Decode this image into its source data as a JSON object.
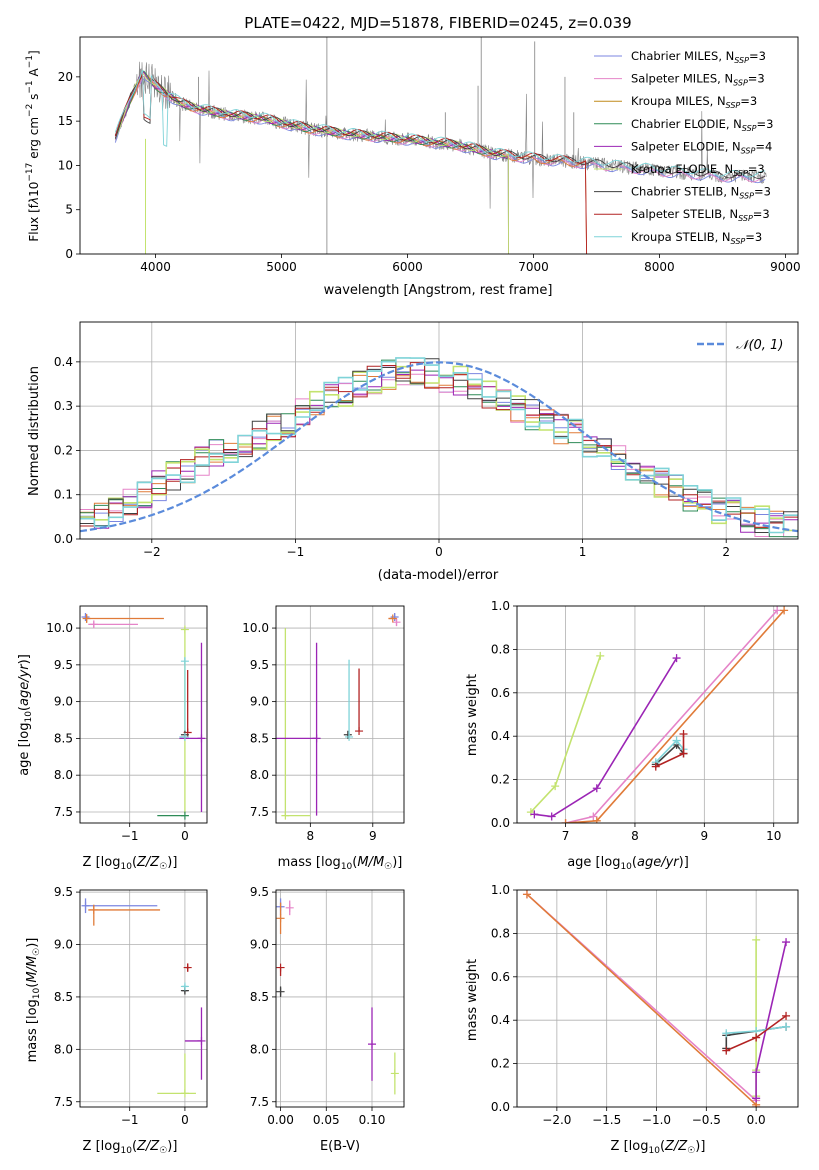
{
  "colors": {
    "Chabrier MILES": "#7b86e0",
    "Salpeter MILES": "#e584c8",
    "Kroupa MILES": "#c08a1a",
    "Chabrier ELODIE": "#2e8b57",
    "Salpeter ELODIE": "#9b25b5",
    "Kroupa ELODIE": "#c3e36f",
    "Chabrier STELIB": "#404040",
    "Salpeter STELIB": "#b22222",
    "Kroupa STELIB": "#7fd3d8",
    "orange": "#e07b39",
    "normal_curve": "#5b8bdb"
  },
  "chart_data": [
    {
      "type": "line",
      "title": "PLATE=0422, MJD=51878, FIBERID=0245, z=0.039",
      "xlabel": "wavelength [Angstrom, rest frame]",
      "ylabel": "Flux [f_λ10⁻¹⁷ erg cm⁻² s⁻¹ A⁻¹]",
      "xlim": [
        3400,
        9100
      ],
      "ylim": [
        0,
        24.5
      ],
      "xticks": [
        4000,
        5000,
        6000,
        7000,
        8000,
        9000
      ],
      "yticks": [
        0,
        5,
        10,
        15,
        20
      ],
      "legend": {
        "placement": "top-right",
        "entries": [
          {
            "name": "Chabrier MILES",
            "suffix": "=3"
          },
          {
            "name": "Salpeter MILES",
            "suffix": "=3"
          },
          {
            "name": "Kroupa MILES",
            "suffix": "=3"
          },
          {
            "name": "Chabrier ELODIE",
            "suffix": "=3"
          },
          {
            "name": "Salpeter ELODIE",
            "suffix": "=4"
          },
          {
            "name": "Kroupa ELODIE",
            "suffix": "=3"
          },
          {
            "name": "Chabrier STELIB",
            "suffix": "=3"
          },
          {
            "name": "Salpeter STELIB",
            "suffix": "=3"
          },
          {
            "name": "Kroupa STELIB",
            "suffix": "=3"
          }
        ]
      },
      "continuum_knots": [
        [
          3680,
          13.2
        ],
        [
          3800,
          17.5
        ],
        [
          3900,
          20.5
        ],
        [
          4000,
          19.0
        ],
        [
          4100,
          18.0
        ],
        [
          4200,
          17.0
        ],
        [
          4400,
          16.2
        ],
        [
          4600,
          15.7
        ],
        [
          4850,
          15.3
        ],
        [
          5000,
          14.8
        ],
        [
          5200,
          14.2
        ],
        [
          5500,
          13.6
        ],
        [
          5800,
          13.2
        ],
        [
          6100,
          12.8
        ],
        [
          6400,
          12.3
        ],
        [
          6700,
          11.3
        ],
        [
          7000,
          10.8
        ],
        [
          7400,
          10.3
        ],
        [
          8000,
          9.4
        ],
        [
          8500,
          8.8
        ],
        [
          8850,
          8.7
        ]
      ]
    },
    {
      "type": "bar",
      "xlabel": "(data-model)/error",
      "ylabel": "Normed distribution",
      "xlim": [
        -2.5,
        2.5
      ],
      "ylim": [
        0,
        0.49
      ],
      "xticks": [
        -2,
        -1,
        0,
        1,
        2
      ],
      "yticks": [
        0.0,
        0.1,
        0.2,
        0.3,
        0.4
      ],
      "grid": true,
      "legend": {
        "placement": "top-right",
        "label": "N(0,1)"
      },
      "bin_centers": [
        -2.45,
        -2.35,
        -2.25,
        -2.15,
        -2.05,
        -1.95,
        -1.85,
        -1.75,
        -1.65,
        -1.55,
        -1.45,
        -1.35,
        -1.25,
        -1.15,
        -1.05,
        -0.95,
        -0.85,
        -0.75,
        -0.65,
        -0.55,
        -0.45,
        -0.35,
        -0.25,
        -0.15,
        -0.05,
        0.05,
        0.15,
        0.25,
        0.35,
        0.45,
        0.55,
        0.65,
        0.75,
        0.85,
        0.95,
        1.05,
        1.15,
        1.25,
        1.35,
        1.45,
        1.55,
        1.65,
        1.75,
        1.85,
        1.95,
        2.05,
        2.15,
        2.25,
        2.35,
        2.45
      ],
      "mean_histogram": [
        0.055,
        0.05,
        0.06,
        0.085,
        0.1,
        0.12,
        0.14,
        0.16,
        0.175,
        0.19,
        0.205,
        0.22,
        0.235,
        0.25,
        0.265,
        0.29,
        0.305,
        0.32,
        0.335,
        0.345,
        0.36,
        0.37,
        0.375,
        0.38,
        0.375,
        0.365,
        0.355,
        0.34,
        0.325,
        0.31,
        0.295,
        0.28,
        0.265,
        0.25,
        0.235,
        0.215,
        0.195,
        0.18,
        0.16,
        0.145,
        0.125,
        0.11,
        0.095,
        0.08,
        0.07,
        0.06,
        0.05,
        0.04,
        0.035,
        0.03
      ]
    },
    {
      "type": "scatter",
      "name": "age-vs-Z",
      "xlabel": "Z [log₁₀(Z/Z☉)]",
      "ylabel": "age  [log₁₀(age/yr)]",
      "xlim": [
        -1.9,
        0.4
      ],
      "ylim": [
        7.35,
        10.3
      ],
      "xticks": [
        -1,
        0
      ],
      "yticks": [
        7.5,
        8.0,
        8.5,
        9.0,
        9.5,
        10.0
      ],
      "points": [
        {
          "series": "Chabrier MILES",
          "x": -1.8,
          "y": 10.15,
          "xerr": [
            0.0,
            0.0
          ],
          "yerr": [
            0.05,
            0.05
          ]
        },
        {
          "series": "Salpeter MILES",
          "x": -1.65,
          "y": 10.05,
          "xerr": [
            0.1,
            0.8
          ],
          "yerr": [
            0.04,
            0.04
          ]
        },
        {
          "series": "orange",
          "x": -1.78,
          "y": 10.13,
          "xerr": [
            0.0,
            1.4
          ],
          "yerr": [
            0.06,
            0.06
          ]
        },
        {
          "series": "Kroupa ELODIE",
          "x": 0.0,
          "y": 9.98,
          "xerr": [
            0.0,
            0.0
          ],
          "yerr": [
            2.5,
            0.04
          ]
        },
        {
          "series": "Kroupa STELIB",
          "x": 0.0,
          "y": 9.55,
          "xerr": [
            0.0,
            0.0
          ],
          "yerr": [
            1.0,
            0.05
          ]
        },
        {
          "series": "Salpeter ELODIE",
          "x": 0.3,
          "y": 8.5,
          "xerr": [
            0.4,
            0.0
          ],
          "yerr": [
            1.0,
            1.3
          ]
        },
        {
          "series": "Salpeter STELIB",
          "x": 0.05,
          "y": 8.58,
          "xerr": [
            0.0,
            0.0
          ],
          "yerr": [
            0.0,
            0.85
          ]
        },
        {
          "series": "Chabrier STELIB",
          "x": 0.0,
          "y": 8.55,
          "xerr": [
            0.0,
            0.0
          ],
          "yerr": [
            0.0,
            0.0
          ]
        },
        {
          "series": "Kroupa STELIB",
          "x": 0.0,
          "y": 8.52,
          "xerr": [
            0.1,
            0.0
          ],
          "yerr": [
            0.0,
            0.0
          ]
        },
        {
          "series": "Chabrier ELODIE",
          "x": 0.0,
          "y": 7.45,
          "xerr": [
            0.5,
            0.0
          ],
          "yerr": [
            0.0,
            0.0
          ]
        }
      ]
    },
    {
      "type": "scatter",
      "name": "age-vs-mass",
      "xlabel": "mass [log₁₀(M/M☉)]",
      "ylabel": "",
      "xlim": [
        7.45,
        9.5
      ],
      "ylim": [
        7.35,
        10.3
      ],
      "xticks": [
        8,
        9
      ],
      "yticks": [
        7.5,
        8.0,
        8.5,
        9.0,
        9.5,
        10.0
      ],
      "points": [
        {
          "series": "Chabrier MILES",
          "x": 9.35,
          "y": 10.15,
          "xerr": [
            0.0,
            0.0
          ],
          "yerr": [
            0.05,
            0.05
          ]
        },
        {
          "series": "Salpeter MILES",
          "x": 9.38,
          "y": 10.08,
          "xerr": [
            0.0,
            0.0
          ],
          "yerr": [
            0.05,
            0.05
          ]
        },
        {
          "series": "orange",
          "x": 9.32,
          "y": 10.13,
          "xerr": [
            0.07,
            0.0
          ],
          "yerr": [
            0.0,
            0.0
          ]
        },
        {
          "series": "Kroupa ELODIE",
          "x": 7.6,
          "y": 7.45,
          "xerr": [
            0.0,
            0.4
          ],
          "yerr": [
            0.0,
            2.55
          ]
        },
        {
          "series": "Salpeter ELODIE",
          "x": 8.1,
          "y": 8.5,
          "xerr": [
            0.7,
            0.0
          ],
          "yerr": [
            1.05,
            1.3
          ]
        },
        {
          "series": "Chabrier STELIB",
          "x": 8.6,
          "y": 8.55,
          "xerr": [
            0.0,
            0.0
          ],
          "yerr": [
            0.0,
            0.0
          ]
        },
        {
          "series": "Kroupa STELIB",
          "x": 8.62,
          "y": 8.52,
          "xerr": [
            0.0,
            0.0
          ],
          "yerr": [
            0.0,
            1.05
          ]
        },
        {
          "series": "Salpeter STELIB",
          "x": 8.78,
          "y": 8.6,
          "xerr": [
            0.0,
            0.0
          ],
          "yerr": [
            0.0,
            0.85
          ]
        }
      ]
    },
    {
      "type": "line",
      "name": "mass-weight-vs-age",
      "xlabel": "age  [log₁₀(age/yr)]",
      "ylabel": "mass weight",
      "xlim": [
        6.3,
        10.35
      ],
      "ylim": [
        0,
        1.0
      ],
      "xticks": [
        7,
        8,
        9,
        10
      ],
      "yticks": [
        0.0,
        0.2,
        0.4,
        0.6,
        0.8,
        1.0
      ],
      "series": [
        {
          "name": "Kroupa ELODIE",
          "x": [
            6.5,
            6.85,
            7.5
          ],
          "y": [
            0.05,
            0.17,
            0.77
          ]
        },
        {
          "name": "Salpeter ELODIE",
          "x": [
            6.55,
            6.8,
            7.45,
            8.6
          ],
          "y": [
            0.04,
            0.03,
            0.16,
            0.76
          ]
        },
        {
          "name": "Salpeter MILES",
          "x": [
            7.0,
            7.4,
            10.05
          ],
          "y": [
            0.0,
            0.03,
            0.98
          ]
        },
        {
          "name": "orange",
          "x": [
            7.0,
            7.45,
            10.15
          ],
          "y": [
            0.0,
            0.01,
            0.98
          ]
        },
        {
          "name": "Chabrier STELIB",
          "x": [
            8.3,
            8.6,
            8.7
          ],
          "y": [
            0.27,
            0.36,
            0.32
          ]
        },
        {
          "name": "Kroupa STELIB",
          "x": [
            8.3,
            8.6,
            8.7
          ],
          "y": [
            0.28,
            0.38,
            0.34
          ]
        },
        {
          "name": "Salpeter STELIB",
          "x": [
            8.3,
            8.7,
            8.7
          ],
          "y": [
            0.26,
            0.32,
            0.41
          ]
        }
      ]
    },
    {
      "type": "scatter",
      "name": "mass-vs-Z",
      "xlabel": "Z [log₁₀(Z/Z☉)]",
      "ylabel": "mass [log₁₀(M/M☉)]",
      "xlim": [
        -1.9,
        0.4
      ],
      "ylim": [
        7.45,
        9.52
      ],
      "xticks": [
        -1,
        0
      ],
      "yticks": [
        7.5,
        8.0,
        8.5,
        9.0,
        9.5
      ],
      "points": [
        {
          "series": "Chabrier MILES",
          "x": -1.8,
          "y": 9.37,
          "xerr": [
            0.0,
            1.3
          ],
          "yerr": [
            0.07,
            0.07
          ]
        },
        {
          "series": "orange",
          "x": -1.65,
          "y": 9.33,
          "xerr": [
            0.1,
            1.2
          ],
          "yerr": [
            0.15,
            0.05
          ]
        },
        {
          "series": "Salpeter STELIB",
          "x": 0.05,
          "y": 8.78,
          "xerr": [
            0.03,
            0.03
          ],
          "yerr": [
            0.04,
            0.04
          ]
        },
        {
          "series": "Chabrier STELIB",
          "x": 0.0,
          "y": 8.56,
          "xerr": [
            0.05,
            0.05
          ],
          "yerr": [
            0.03,
            0.03
          ]
        },
        {
          "series": "Kroupa STELIB",
          "x": 0.0,
          "y": 8.6,
          "xerr": [
            0.05,
            0.05
          ],
          "yerr": [
            0.02,
            0.02
          ]
        },
        {
          "series": "Salpeter ELODIE",
          "x": 0.3,
          "y": 8.08,
          "xerr": [
            0.3,
            0.0
          ],
          "yerr": [
            0.37,
            0.32
          ]
        },
        {
          "series": "Kroupa ELODIE",
          "x": 0.0,
          "y": 7.58,
          "xerr": [
            0.5,
            0.2
          ],
          "yerr": [
            0.0,
            0.38
          ]
        }
      ]
    },
    {
      "type": "scatter",
      "name": "mass-vs-EBV",
      "xlabel": "E(B-V)",
      "ylabel": "",
      "xlim": [
        -0.005,
        0.135
      ],
      "ylim": [
        7.45,
        9.52
      ],
      "xticks": [
        0.0,
        0.05,
        0.1
      ],
      "xtick_labels": [
        "0.00",
        "0.05",
        "0.10"
      ],
      "yticks": [
        7.5,
        8.0,
        8.5,
        9.0,
        9.5
      ],
      "points": [
        {
          "series": "Chabrier MILES",
          "x": 0.0,
          "y": 9.36,
          "yerr": [
            0.08,
            0.08
          ]
        },
        {
          "series": "orange",
          "x": 0.0,
          "y": 9.25,
          "yerr": [
            0.15,
            0.15
          ]
        },
        {
          "series": "Salpeter MILES",
          "x": 0.01,
          "y": 9.35,
          "yerr": [
            0.07,
            0.07
          ]
        },
        {
          "series": "Salpeter STELIB",
          "x": 0.0,
          "y": 8.78,
          "yerr": [
            0.08,
            0.0
          ]
        },
        {
          "series": "Chabrier STELIB",
          "x": 0.0,
          "y": 8.55,
          "yerr": [
            0.05,
            0.05
          ]
        },
        {
          "series": "Salpeter ELODIE",
          "x": 0.1,
          "y": 8.05,
          "yerr": [
            0.35,
            0.35
          ]
        },
        {
          "series": "Kroupa ELODIE",
          "x": 0.125,
          "y": 7.77,
          "yerr": [
            0.2,
            0.2
          ]
        }
      ]
    },
    {
      "type": "line",
      "name": "mass-weight-vs-Z",
      "xlabel": "Z [log₁₀(Z/Z☉)]",
      "ylabel": "mass weight",
      "xlim": [
        -2.4,
        0.42
      ],
      "ylim": [
        0,
        1.0
      ],
      "xticks": [
        -2.0,
        -1.5,
        -1.0,
        -0.5,
        0.0
      ],
      "xtick_labels": [
        "−2.0",
        "−1.5",
        "−1.0",
        "−0.5",
        "0.0"
      ],
      "yticks": [
        0.0,
        0.2,
        0.4,
        0.6,
        0.8,
        1.0
      ],
      "series": [
        {
          "name": "Salpeter MILES",
          "x": [
            -2.3,
            0.0,
            0.0
          ],
          "y": [
            0.98,
            0.03,
            0.0
          ]
        },
        {
          "name": "orange",
          "x": [
            -2.3,
            0.0,
            0.0
          ],
          "y": [
            0.98,
            0.01,
            0.0
          ]
        },
        {
          "name": "Kroupa ELODIE",
          "x": [
            0.0,
            0.0,
            0.0
          ],
          "y": [
            0.05,
            0.17,
            0.77
          ]
        },
        {
          "name": "Salpeter ELODIE",
          "x": [
            0.0,
            0.0,
            0.3
          ],
          "y": [
            0.04,
            0.16,
            0.76
          ]
        },
        {
          "name": "Chabrier STELIB",
          "x": [
            -0.3,
            -0.3,
            0.3
          ],
          "y": [
            0.27,
            0.33,
            0.37
          ]
        },
        {
          "name": "Kroupa STELIB",
          "x": [
            -0.3,
            0.0,
            0.3
          ],
          "y": [
            0.34,
            0.35,
            0.37
          ]
        },
        {
          "name": "Salpeter STELIB",
          "x": [
            -0.3,
            0.0,
            0.3
          ],
          "y": [
            0.26,
            0.32,
            0.42
          ]
        }
      ]
    }
  ]
}
